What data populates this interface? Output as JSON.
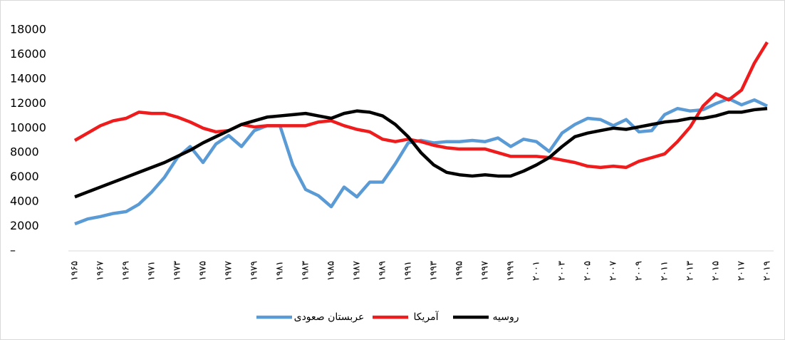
{
  "chart_data": {
    "type": "line",
    "categories": [
      "۱۹۶۵",
      null,
      "۱۹۶۷",
      null,
      "۱۹۶۹",
      null,
      "۱۹۷۱",
      null,
      "۱۹۷۳",
      null,
      "۱۹۷۵",
      null,
      "۱۹۷۷",
      null,
      "۱۹۷۹",
      null,
      "۱۹۸۱",
      null,
      "۱۹۸۳",
      null,
      "۱۹۸۵",
      null,
      "۱۹۸۷",
      null,
      "۱۹۸۹",
      null,
      "۱۹۹۱",
      null,
      "۱۹۹۳",
      null,
      "۱۹۹۵",
      null,
      "۱۹۹۷",
      null,
      "۱۹۹۹",
      null,
      "۲۰۰۱",
      null,
      "۲۰۰۳",
      null,
      "۲۰۰۵",
      null,
      "۲۰۰۷",
      null,
      "۲۰۰۹",
      null,
      "۲۰۱۱",
      null,
      "۲۰۱۳",
      null,
      "۲۰۱۵",
      null,
      "۲۰۱۷",
      null,
      "۲۰۱۹"
    ],
    "series": [
      {
        "name": "عربستان صعودی",
        "color": "#5b9bd5",
        "values": [
          2200,
          2600,
          2800,
          3050,
          3200,
          3800,
          4800,
          6000,
          7600,
          8500,
          7200,
          8700,
          9400,
          8500,
          9800,
          10200,
          10200,
          7000,
          5000,
          4500,
          3600,
          5200,
          4400,
          5600,
          5600,
          7100,
          8800,
          9000,
          8800,
          8900,
          8900,
          9000,
          8900,
          9200,
          8500,
          9100,
          8900,
          8100,
          9600,
          10300,
          10800,
          10700,
          10200,
          10700,
          9700,
          9800,
          11100,
          11600,
          11400,
          11500,
          12000,
          12400,
          11900,
          12300,
          11800
        ]
      },
      {
        "name": "آمریکا",
        "color": "#ee1c1c",
        "values": [
          9000,
          9600,
          10200,
          10600,
          10800,
          11300,
          11200,
          11200,
          10900,
          10500,
          10000,
          9700,
          9800,
          10300,
          10100,
          10200,
          10200,
          10200,
          10200,
          10500,
          10600,
          10200,
          9900,
          9700,
          9100,
          8900,
          9100,
          8900,
          8600,
          8400,
          8300,
          8300,
          8300,
          8000,
          7700,
          7700,
          7700,
          7600,
          7400,
          7200,
          6900,
          6800,
          6900,
          6800,
          7300,
          7600,
          7900,
          8900,
          10100,
          11800,
          12800,
          12300,
          13100,
          15300,
          17000
        ]
      },
      {
        "name": "روسیه",
        "color": "#000000",
        "values": [
          4400,
          4800,
          5200,
          5600,
          6000,
          6400,
          6800,
          7200,
          7700,
          8200,
          8800,
          9300,
          9800,
          10300,
          10600,
          10900,
          11000,
          11100,
          11200,
          11000,
          10800,
          11200,
          11400,
          11300,
          11000,
          10300,
          9300,
          8000,
          7000,
          6400,
          6200,
          6100,
          6200,
          6100,
          6100,
          6500,
          7000,
          7600,
          8500,
          9300,
          9600,
          9800,
          10000,
          9900,
          10100,
          10300,
          10500,
          10600,
          10800,
          10800,
          11000,
          11300,
          11300,
          11500,
          11600
        ]
      }
    ],
    "ylim": [
      0,
      18000
    ],
    "yticks": [
      {
        "value": 0,
        "label": "–"
      },
      2000,
      4000,
      6000,
      8000,
      10000,
      12000,
      14000,
      16000,
      18000
    ],
    "grid": false,
    "legend": "bottom"
  }
}
